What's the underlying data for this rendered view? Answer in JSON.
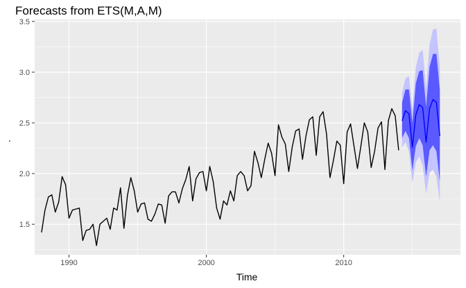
{
  "chart_data": {
    "type": "line",
    "title": "Forecasts from ETS(M,A,M)",
    "xlabel": "Time",
    "ylabel": ".",
    "xlim": [
      1987.5,
      2018.5
    ],
    "ylim": [
      1.2,
      3.52
    ],
    "x_ticks": [
      1990,
      2000,
      2010
    ],
    "x_tick_labels": [
      "1990",
      "2000",
      "2010"
    ],
    "y_ticks": [
      1.5,
      2.0,
      2.5,
      3.0,
      3.5
    ],
    "y_tick_labels": [
      "1.5",
      "2.0",
      "2.5",
      "3.0",
      "3.5"
    ],
    "grid": true,
    "legend": "none",
    "observed": {
      "start": 1988.0,
      "frequency": 4,
      "values": [
        1.42,
        1.64,
        1.77,
        1.79,
        1.62,
        1.72,
        1.97,
        1.89,
        1.56,
        1.64,
        1.65,
        1.66,
        1.34,
        1.44,
        1.45,
        1.5,
        1.29,
        1.5,
        1.53,
        1.56,
        1.45,
        1.66,
        1.64,
        1.86,
        1.46,
        1.78,
        1.96,
        1.83,
        1.62,
        1.7,
        1.71,
        1.55,
        1.53,
        1.6,
        1.7,
        1.69,
        1.51,
        1.78,
        1.82,
        1.82,
        1.71,
        1.85,
        1.94,
        2.07,
        1.73,
        1.95,
        2.01,
        2.02,
        1.83,
        2.07,
        1.92,
        1.66,
        1.55,
        1.73,
        1.69,
        1.83,
        1.73,
        1.98,
        2.02,
        1.98,
        1.83,
        1.88,
        2.22,
        2.11,
        1.96,
        2.14,
        2.3,
        2.2,
        1.98,
        2.48,
        2.36,
        2.29,
        2.02,
        2.26,
        2.42,
        2.44,
        2.14,
        2.37,
        2.53,
        2.56,
        2.18,
        2.56,
        2.61,
        2.39,
        1.96,
        2.13,
        2.32,
        2.28,
        1.9,
        2.41,
        2.49,
        2.27,
        2.05,
        2.27,
        2.5,
        2.41,
        2.06,
        2.22,
        2.45,
        2.51,
        2.04,
        2.52,
        2.64,
        2.57,
        2.23
      ],
      "color": "#000000"
    },
    "forecast": {
      "start": 2014.25,
      "frequency": 4,
      "mean": [
        2.52,
        2.62,
        2.59,
        2.26,
        2.58,
        2.68,
        2.65,
        2.31,
        2.64,
        2.73,
        2.7,
        2.37
      ],
      "lo80": [
        2.35,
        2.42,
        2.35,
        2.03,
        2.27,
        2.35,
        2.28,
        1.97,
        2.23,
        2.28,
        2.22,
        1.92
      ],
      "hi80": [
        2.7,
        2.83,
        2.83,
        2.5,
        2.89,
        3.01,
        3.02,
        2.66,
        3.05,
        3.18,
        3.18,
        2.82
      ],
      "lo95": [
        2.26,
        2.31,
        2.22,
        1.91,
        2.11,
        2.17,
        2.08,
        1.8,
        2.01,
        2.04,
        1.97,
        1.72
      ],
      "hi95": [
        2.8,
        2.94,
        2.96,
        2.63,
        3.05,
        3.19,
        3.22,
        2.84,
        3.27,
        3.42,
        3.43,
        3.04
      ],
      "mean_color": "#0000ff",
      "band80_color": "#5a5aff",
      "band95_color": "#c4c4ff"
    },
    "panel_background": "#ebebeb",
    "grid_color": "#ffffff"
  }
}
